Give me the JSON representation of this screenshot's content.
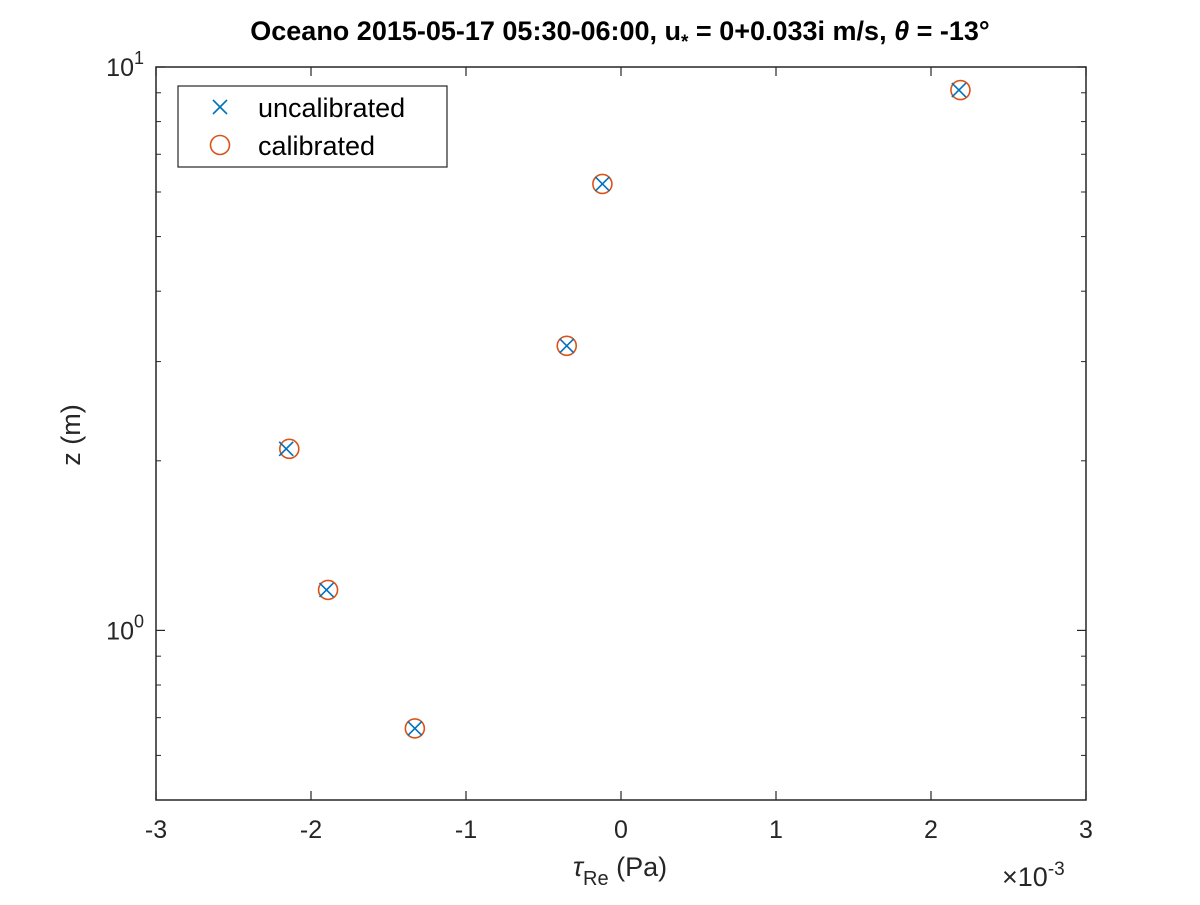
{
  "chart_data": {
    "type": "scatter",
    "title": {
      "prefix": "Oceano 2015-05-17 05:30-06:00, u",
      "prefix_sub": "*",
      "middle": " = 0+0.033i m/s, ",
      "symbol": "θ",
      "suffix": " = -13°"
    },
    "xlabel": {
      "symbol": "τ",
      "sub": "Re",
      "unit": " (Pa)"
    },
    "ylabel": "z (m)",
    "x_multiplier": {
      "prefix": "×10",
      "exp": "-3"
    },
    "xlim": [
      -3,
      3
    ],
    "ylim": [
      0.5,
      10
    ],
    "y_scale": "log",
    "x_ticks": [
      -3,
      -2,
      -1,
      0,
      1,
      2,
      3
    ],
    "x_tick_labels": [
      "-3",
      "-2",
      "-1",
      "0",
      "1",
      "2",
      "3"
    ],
    "y_ticks": [
      {
        "value": 1,
        "base": "10",
        "exp": "0"
      },
      {
        "value": 10,
        "base": "10",
        "exp": "1"
      }
    ],
    "y_minor_ticks": [
      0.6,
      0.7,
      0.8,
      0.9,
      2,
      3,
      4,
      5,
      6,
      7,
      8,
      9
    ],
    "grid": false,
    "legend_position": "top-left",
    "series": [
      {
        "name": "uncalibrated",
        "marker": "x",
        "color": "#0072BD",
        "x": [
          2.18,
          -0.12,
          -0.35,
          -2.16,
          -1.9,
          -1.33
        ],
        "y": [
          9.1,
          6.2,
          3.2,
          2.1,
          1.18,
          0.67
        ]
      },
      {
        "name": "calibrated",
        "marker": "o",
        "color": "#D95319",
        "x": [
          2.19,
          -0.12,
          -0.35,
          -2.14,
          -1.89,
          -1.33
        ],
        "y": [
          9.1,
          6.2,
          3.2,
          2.1,
          1.18,
          0.67
        ]
      }
    ]
  }
}
